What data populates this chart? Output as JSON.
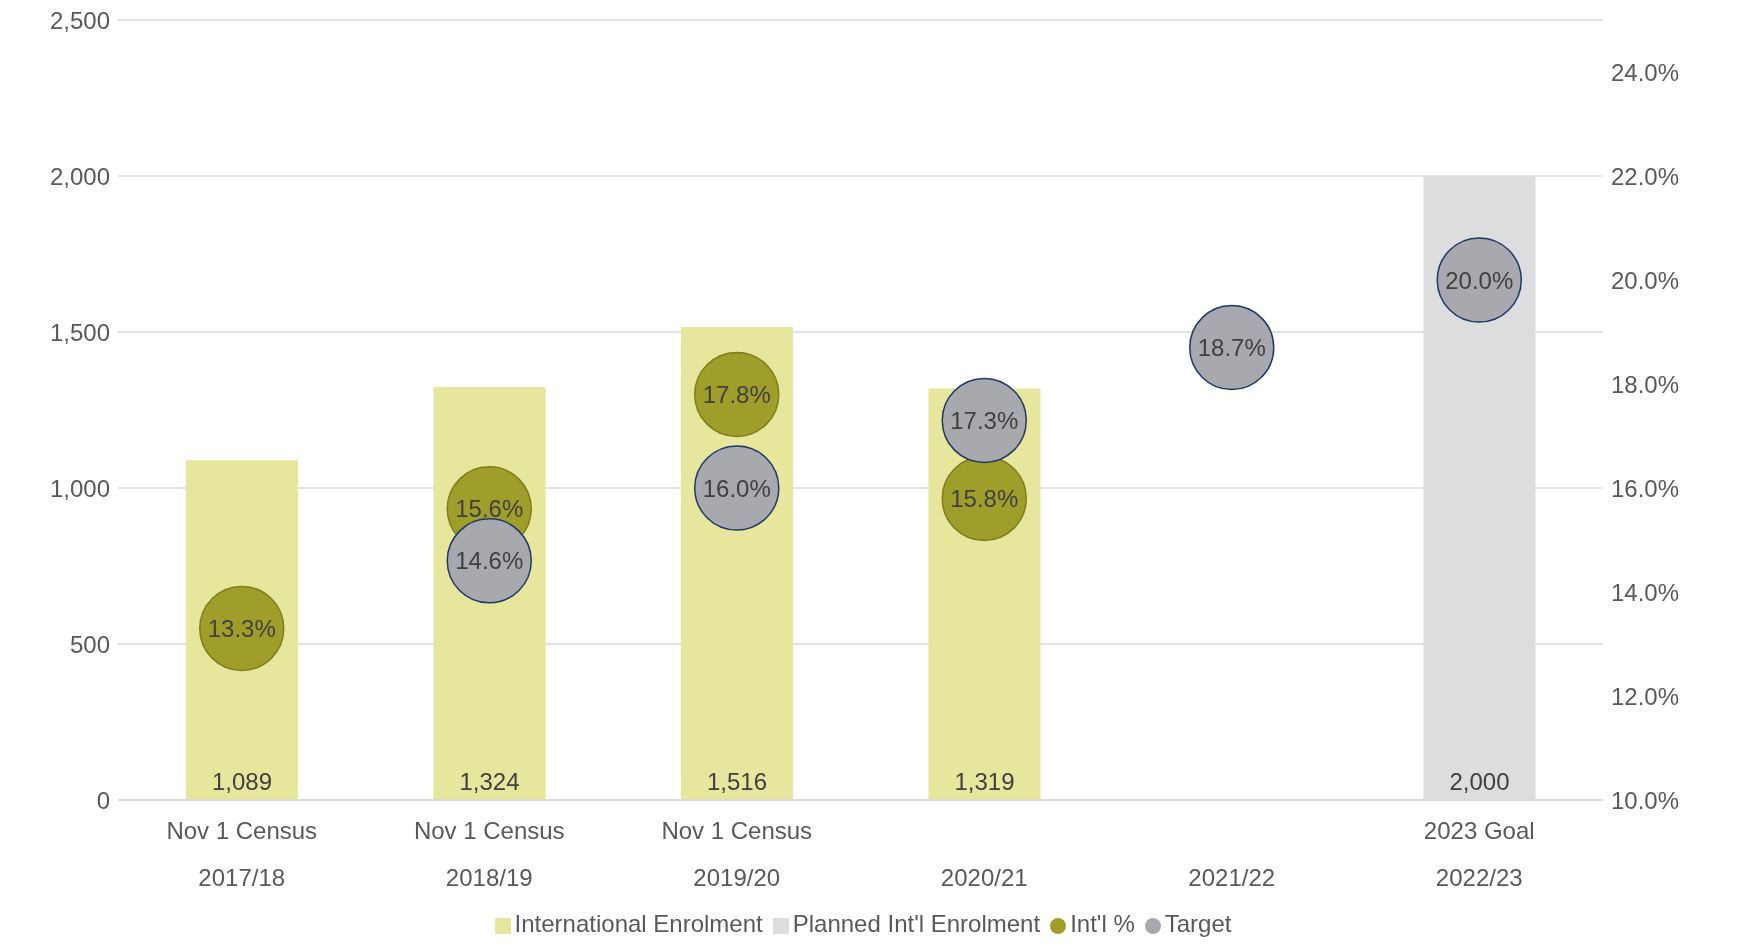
{
  "chart_data": {
    "type": "bar",
    "stacked": true,
    "categories": [
      "Nov 1 Census\n2017/18",
      "Nov 1 Census\n2018/19",
      "Nov 1 Census\n2019/20",
      "2020/21",
      "2021/22",
      "2023 Goal\n2022/23"
    ],
    "series": [
      {
        "name": "International Enrolment",
        "color": "#e6e69c",
        "values": [
          1089,
          1324,
          1516,
          1319,
          null,
          null
        ],
        "value_labels": [
          "1,089",
          "1,324",
          "1,516",
          "1,319",
          null,
          null
        ]
      },
      {
        "name": "Planned Int'l Enrolment",
        "color": "#dcdddf",
        "values": [
          null,
          null,
          null,
          null,
          null,
          2000
        ],
        "value_labels": [
          null,
          null,
          null,
          null,
          null,
          "2,000"
        ]
      },
      {
        "name": "Int'l %",
        "type": "scatter",
        "axis": "y2",
        "color": "#a09e2a",
        "values": [
          13.3,
          15.6,
          17.8,
          15.8,
          null,
          null
        ],
        "value_labels": [
          "13.3%",
          "15.6%",
          "17.8%",
          "15.8%",
          null,
          null
        ]
      },
      {
        "name": "Target",
        "type": "scatter",
        "axis": "y2",
        "color": "#a7a9ae",
        "values": [
          null,
          14.6,
          16.0,
          17.3,
          18.7,
          20.0
        ],
        "value_labels": [
          null,
          "14.6%",
          "16.0%",
          "17.3%",
          "18.7%",
          "20.0%"
        ]
      }
    ],
    "ylim": [
      0,
      2500
    ],
    "yticks": [
      0,
      500,
      {
        "value": 1000,
        "label": "1,000"
      },
      {
        "value": 1500,
        "label": "1,500"
      },
      {
        "value": 2000,
        "label": "2,000"
      },
      {
        "value": 2500,
        "label": "2,500"
      }
    ],
    "y2lim": [
      10,
      25
    ],
    "y2ticks": [
      {
        "value": 10,
        "label": "10.0%"
      },
      {
        "value": 12,
        "label": "12.0%"
      },
      {
        "value": 14,
        "label": "14.0%"
      },
      {
        "value": 16,
        "label": "16.0%"
      },
      {
        "value": 18,
        "label": "18.0%"
      },
      {
        "value": 20,
        "label": "20.0%"
      },
      {
        "value": 22,
        "label": "22.0%"
      },
      {
        "value": 24,
        "label": "24.0%"
      }
    ],
    "grid": "y",
    "legend": "bottom",
    "marker": "circle"
  }
}
